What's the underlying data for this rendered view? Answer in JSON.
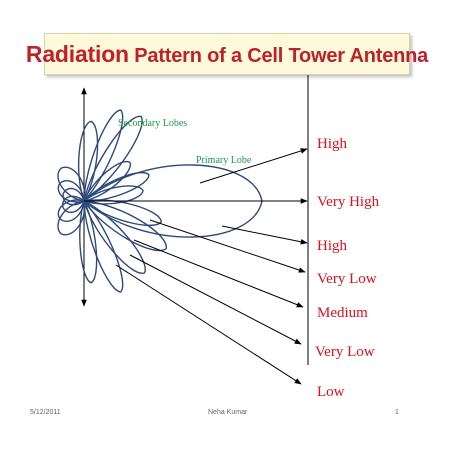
{
  "title": {
    "lead": "Radiation",
    "rest": "Pattern of a Cell Tower Antenna"
  },
  "labels": {
    "secondary_lobes": "Secondary Lobes",
    "primary_lobe": "Primary Lobe"
  },
  "levels": [
    "High",
    "Very High",
    "High",
    "Very Low",
    "Medium",
    "Very Low",
    "Low"
  ],
  "footer": {
    "date": "5/12/2011",
    "author": "Neha Kumar",
    "page": "1"
  },
  "colors": {
    "title_text": "#c0202a",
    "title_bg": "#fdfadc",
    "lobe_stroke": "#2f4a7a",
    "label_green": "#1a9a48",
    "level_red": "#e0101c"
  }
}
